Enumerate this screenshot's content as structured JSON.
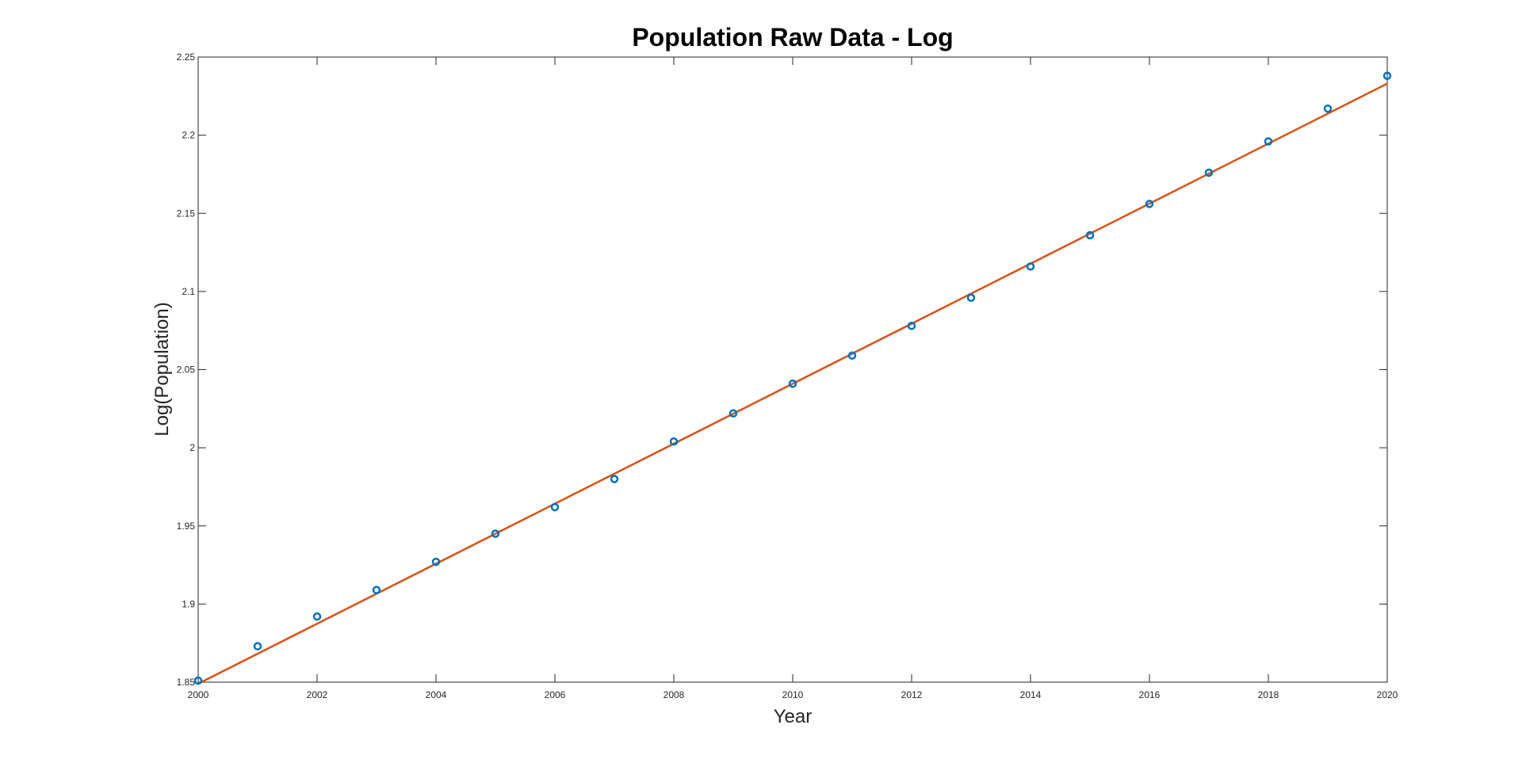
{
  "chart_data": {
    "type": "scatter",
    "title": "Population Raw Data - Log",
    "xlabel": "Year",
    "ylabel": "Log(Population)",
    "xlim": [
      2000,
      2020
    ],
    "ylim": [
      1.85,
      2.25
    ],
    "x_ticks": [
      2000,
      2002,
      2004,
      2006,
      2008,
      2010,
      2012,
      2014,
      2016,
      2018,
      2020
    ],
    "y_ticks": [
      1.85,
      1.9,
      1.95,
      2,
      2.05,
      2.1,
      2.15,
      2.2,
      2.25
    ],
    "x_tick_labels": [
      "2000",
      "2002",
      "2004",
      "2006",
      "2008",
      "2010",
      "2012",
      "2014",
      "2016",
      "2018",
      "2020"
    ],
    "y_tick_labels": [
      "1.85",
      "1.9",
      "1.95",
      "2",
      "2.05",
      "2.1",
      "2.15",
      "2.2",
      "2.25"
    ],
    "grid": false,
    "series": [
      {
        "kind": "scatter",
        "marker": "circle",
        "color": "#0072BD",
        "x": [
          2000,
          2001,
          2002,
          2003,
          2004,
          2005,
          2006,
          2007,
          2008,
          2009,
          2010,
          2011,
          2012,
          2013,
          2014,
          2015,
          2016,
          2017,
          2018,
          2019,
          2020
        ],
        "y": [
          1.851,
          1.873,
          1.892,
          1.909,
          1.927,
          1.945,
          1.962,
          1.98,
          2.004,
          2.022,
          2.041,
          2.059,
          2.078,
          2.096,
          2.116,
          2.136,
          2.156,
          2.176,
          2.196,
          2.217,
          2.238
        ]
      },
      {
        "kind": "line",
        "color": "#D95319",
        "x": [
          2000,
          2020
        ],
        "y": [
          1.849,
          2.233
        ]
      }
    ]
  }
}
